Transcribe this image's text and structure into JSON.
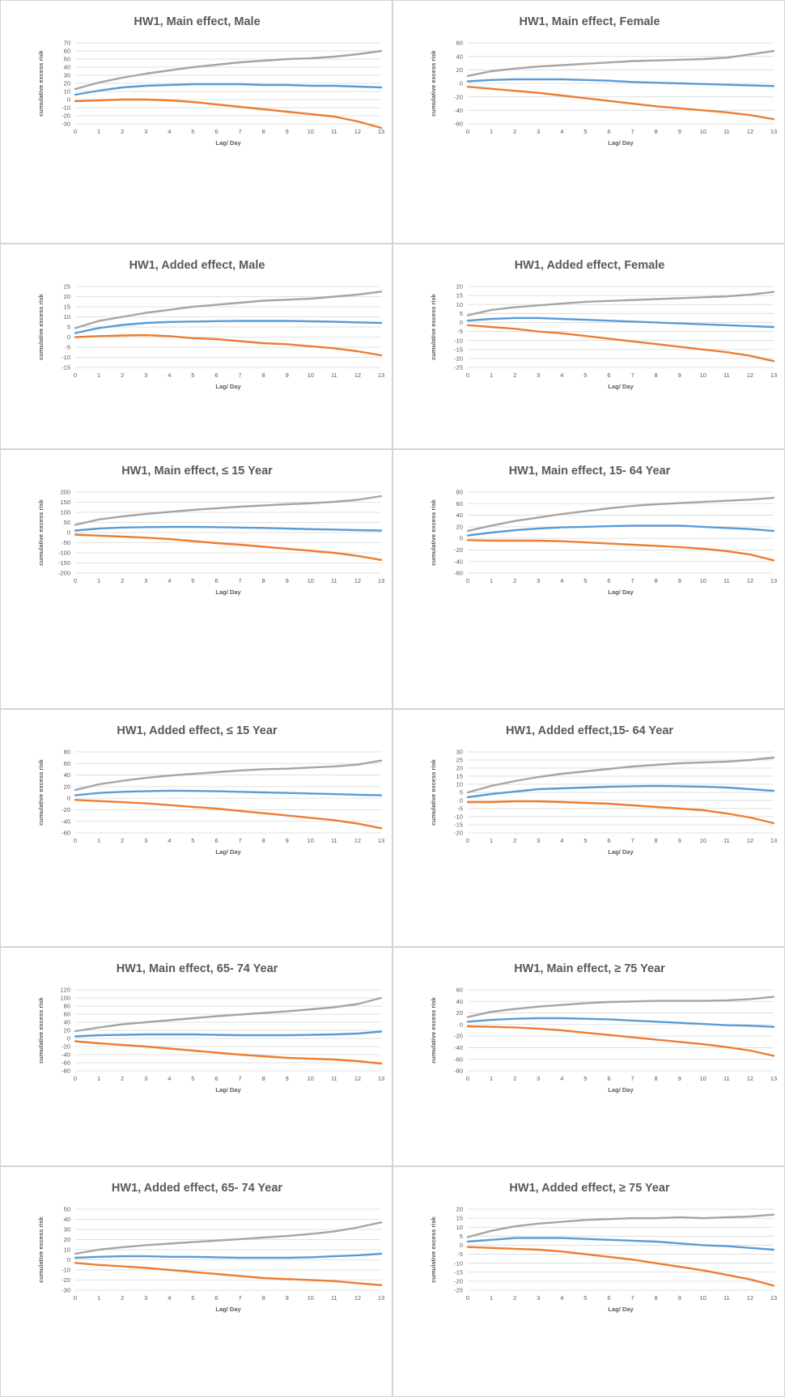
{
  "colors": {
    "upper": "#a5a5a5",
    "estimate": "#5b9bd5",
    "lower": "#ed7d31"
  },
  "chart_data": [
    {
      "type": "line",
      "title": "HW1, Main effect, Male",
      "xlabel": "Lag/ Day",
      "ylabel": "cumulative excess risk",
      "x": [
        0,
        1,
        2,
        3,
        4,
        5,
        6,
        7,
        8,
        9,
        10,
        11,
        12,
        13
      ],
      "ylim": [
        -30,
        70
      ],
      "yticks": [
        70,
        60,
        50,
        40,
        30,
        20,
        10,
        0,
        -10,
        -20,
        -30
      ],
      "grid": true,
      "series": [
        {
          "key": "upper",
          "values": [
            13,
            21,
            27,
            32,
            36,
            40,
            43,
            46,
            48,
            50,
            51,
            53,
            56,
            60
          ]
        },
        {
          "key": "estimate",
          "values": [
            6,
            11,
            15,
            17,
            18,
            19,
            19,
            19,
            18,
            18,
            17,
            17,
            16,
            15
          ]
        },
        {
          "key": "lower",
          "values": [
            -2,
            -1,
            0,
            0,
            -1,
            -3,
            -6,
            -9,
            -12,
            -15,
            -18,
            -21,
            -27,
            -35
          ]
        }
      ]
    },
    {
      "type": "line",
      "title": "HW1, Main effect, Female",
      "xlabel": "Lag/ Day",
      "ylabel": "cumulative excess risk",
      "x": [
        0,
        1,
        2,
        3,
        4,
        5,
        6,
        7,
        8,
        9,
        10,
        11,
        12,
        13
      ],
      "ylim": [
        -60,
        60
      ],
      "yticks": [
        60,
        40,
        20,
        0,
        -20,
        -40,
        -60
      ],
      "grid": true,
      "series": [
        {
          "key": "upper",
          "values": [
            11,
            18,
            22,
            25,
            27,
            29,
            31,
            33,
            34,
            35,
            36,
            38,
            43,
            48
          ]
        },
        {
          "key": "estimate",
          "values": [
            3,
            5,
            6,
            6,
            6,
            5,
            4,
            2,
            1,
            0,
            -1,
            -2,
            -3,
            -4
          ]
        },
        {
          "key": "lower",
          "values": [
            -5,
            -8,
            -11,
            -14,
            -18,
            -22,
            -26,
            -30,
            -34,
            -37,
            -40,
            -43,
            -47,
            -53
          ]
        }
      ]
    },
    {
      "type": "line",
      "title": "HW1, Added effect, Male",
      "xlabel": "Lag/ Day",
      "ylabel": "cumulative excess risk",
      "x": [
        0,
        1,
        2,
        3,
        4,
        5,
        6,
        7,
        8,
        9,
        10,
        11,
        12,
        13
      ],
      "ylim": [
        -15,
        25
      ],
      "yticks": [
        25,
        20,
        15,
        10,
        5,
        0,
        -5,
        -10,
        -15
      ],
      "grid": true,
      "series": [
        {
          "key": "upper",
          "values": [
            4.5,
            8,
            10,
            12,
            13.5,
            15,
            16,
            17,
            18,
            18.5,
            19,
            20,
            21,
            22.5
          ]
        },
        {
          "key": "estimate",
          "values": [
            2,
            4.5,
            6,
            7,
            7.5,
            7.7,
            7.9,
            8,
            8,
            8,
            7.8,
            7.6,
            7.3,
            7
          ]
        },
        {
          "key": "lower",
          "values": [
            0,
            0.5,
            0.8,
            1,
            0.5,
            -0.5,
            -1,
            -2,
            -3,
            -3.5,
            -4.5,
            -5.5,
            -7,
            -9
          ]
        }
      ]
    },
    {
      "type": "line",
      "title": "HW1, Added effect, Female",
      "xlabel": "Lag/ Day",
      "ylabel": "cumulative excess risk",
      "x": [
        0,
        1,
        2,
        3,
        4,
        5,
        6,
        7,
        8,
        9,
        10,
        11,
        12,
        13
      ],
      "ylim": [
        -25,
        20
      ],
      "yticks": [
        20,
        15,
        10,
        5,
        0,
        -5,
        -10,
        -15,
        -20,
        -25
      ],
      "grid": true,
      "series": [
        {
          "key": "upper",
          "values": [
            4,
            7,
            8.5,
            9.5,
            10.5,
            11.5,
            12,
            12.5,
            13,
            13.5,
            14,
            14.5,
            15.5,
            17
          ]
        },
        {
          "key": "estimate",
          "values": [
            1,
            2,
            2.5,
            2.5,
            2,
            1.5,
            1,
            0.5,
            0,
            -0.5,
            -1,
            -1.5,
            -2,
            -2.5
          ]
        },
        {
          "key": "lower",
          "values": [
            -1.5,
            -2.5,
            -3.5,
            -5,
            -6,
            -7.5,
            -9,
            -10.5,
            -12,
            -13.5,
            -15,
            -16.5,
            -18.5,
            -21.5
          ]
        }
      ]
    },
    {
      "type": "line",
      "title": "HW1, Main effect, ≤ 15 Year",
      "xlabel": "Lag/ Day",
      "ylabel": "cumulative excess risk",
      "x": [
        0,
        1,
        2,
        3,
        4,
        5,
        6,
        7,
        8,
        9,
        10,
        11,
        12,
        13
      ],
      "ylim": [
        -200,
        200
      ],
      "yticks": [
        200,
        150,
        100,
        50,
        0,
        -50,
        -100,
        -150,
        -200
      ],
      "grid": true,
      "series": [
        {
          "key": "upper",
          "values": [
            38,
            65,
            80,
            92,
            102,
            112,
            120,
            128,
            134,
            140,
            145,
            152,
            162,
            180
          ]
        },
        {
          "key": "estimate",
          "values": [
            10,
            20,
            25,
            27,
            28,
            28,
            27,
            25,
            23,
            20,
            17,
            15,
            12,
            10
          ]
        },
        {
          "key": "lower",
          "values": [
            -10,
            -15,
            -20,
            -25,
            -32,
            -42,
            -52,
            -60,
            -70,
            -80,
            -90,
            -100,
            -115,
            -135
          ]
        }
      ]
    },
    {
      "type": "line",
      "title": "HW1, Main effect, 15- 64 Year",
      "xlabel": "Lag/ Day",
      "ylabel": "cumulative excess risk",
      "x": [
        0,
        1,
        2,
        3,
        4,
        5,
        6,
        7,
        8,
        9,
        10,
        11,
        12,
        13
      ],
      "ylim": [
        -60,
        80
      ],
      "yticks": [
        80,
        60,
        40,
        20,
        0,
        -20,
        -40,
        -60
      ],
      "grid": true,
      "series": [
        {
          "key": "upper",
          "values": [
            13,
            22,
            30,
            36,
            42,
            47,
            52,
            56,
            59,
            61,
            63,
            65,
            67,
            70
          ]
        },
        {
          "key": "estimate",
          "values": [
            5,
            10,
            14,
            17,
            19,
            20,
            21,
            22,
            22,
            22,
            20,
            18,
            16,
            13
          ]
        },
        {
          "key": "lower",
          "values": [
            -3,
            -4,
            -4,
            -4,
            -5,
            -7,
            -9,
            -11,
            -13,
            -15,
            -18,
            -22,
            -28,
            -38
          ]
        }
      ]
    },
    {
      "type": "line",
      "title": "HW1, Added effect, ≤ 15 Year",
      "xlabel": "Lag/ Day",
      "ylabel": "cumulative excess risk",
      "x": [
        0,
        1,
        2,
        3,
        4,
        5,
        6,
        7,
        8,
        9,
        10,
        11,
        12,
        13
      ],
      "ylim": [
        -60,
        80
      ],
      "yticks": [
        80,
        60,
        40,
        20,
        0,
        -20,
        -40,
        -60
      ],
      "grid": true,
      "series": [
        {
          "key": "upper",
          "values": [
            14,
            24,
            30,
            35,
            39,
            42,
            45,
            48,
            50,
            51,
            53,
            55,
            58,
            65
          ]
        },
        {
          "key": "estimate",
          "values": [
            5,
            9,
            11,
            12,
            13,
            12.5,
            12,
            11,
            10,
            9,
            8,
            7,
            6,
            5
          ]
        },
        {
          "key": "lower",
          "values": [
            -3,
            -5,
            -7,
            -9,
            -12,
            -15,
            -18,
            -22,
            -26,
            -30,
            -34,
            -38,
            -44,
            -52
          ]
        }
      ]
    },
    {
      "type": "line",
      "title": "HW1, Added effect,15- 64 Year",
      "xlabel": "Lag/ Day",
      "ylabel": "cumulative excess risk",
      "x": [
        0,
        1,
        2,
        3,
        4,
        5,
        6,
        7,
        8,
        9,
        10,
        11,
        12,
        13
      ],
      "ylim": [
        -20,
        30
      ],
      "yticks": [
        30,
        25,
        20,
        15,
        10,
        5,
        0,
        -5,
        -10,
        -15,
        -20
      ],
      "grid": true,
      "series": [
        {
          "key": "upper",
          "values": [
            5,
            9,
            12,
            14.5,
            16.5,
            18,
            19.5,
            21,
            22,
            23,
            23.5,
            24,
            25,
            26.5
          ]
        },
        {
          "key": "estimate",
          "values": [
            2,
            4,
            5.5,
            7,
            7.5,
            8,
            8.5,
            8.8,
            9,
            8.8,
            8.5,
            8,
            7,
            6
          ]
        },
        {
          "key": "lower",
          "values": [
            -1,
            -1,
            -0.5,
            -0.5,
            -1,
            -1.5,
            -2,
            -3,
            -4,
            -5,
            -6,
            -8,
            -10.5,
            -14
          ]
        }
      ]
    },
    {
      "type": "line",
      "title": "HW1, Main effect, 65- 74 Year",
      "xlabel": "Lag/ Day",
      "ylabel": "cumulative excess risk",
      "x": [
        0,
        1,
        2,
        3,
        4,
        5,
        6,
        7,
        8,
        9,
        10,
        11,
        12,
        13
      ],
      "ylim": [
        -80,
        120
      ],
      "yticks": [
        120,
        100,
        80,
        60,
        40,
        20,
        0,
        -20,
        -40,
        -60,
        -80
      ],
      "grid": true,
      "series": [
        {
          "key": "upper",
          "values": [
            18,
            27,
            35,
            40,
            45,
            50,
            55,
            59,
            63,
            67,
            72,
            77,
            85,
            100
          ]
        },
        {
          "key": "estimate",
          "values": [
            5,
            8,
            9,
            10,
            10,
            10,
            9,
            8,
            8,
            8,
            9,
            10,
            12,
            17
          ]
        },
        {
          "key": "lower",
          "values": [
            -7,
            -12,
            -16,
            -20,
            -25,
            -30,
            -35,
            -40,
            -44,
            -48,
            -50,
            -52,
            -56,
            -62
          ]
        }
      ]
    },
    {
      "type": "line",
      "title": "HW1, Main effect, ≥ 75 Year",
      "xlabel": "Lag/ Day",
      "ylabel": "cumulative excess risk",
      "x": [
        0,
        1,
        2,
        3,
        4,
        5,
        6,
        7,
        8,
        9,
        10,
        11,
        12,
        13
      ],
      "ylim": [
        -80,
        60
      ],
      "yticks": [
        60,
        40,
        20,
        0,
        -20,
        -40,
        -60,
        -80
      ],
      "grid": true,
      "series": [
        {
          "key": "upper",
          "values": [
            13,
            22,
            27,
            31,
            34,
            37,
            39,
            40,
            41,
            41,
            41,
            42,
            44,
            48
          ]
        },
        {
          "key": "estimate",
          "values": [
            5,
            8,
            10,
            11,
            11,
            10,
            9,
            7,
            5,
            3,
            1,
            -1,
            -2,
            -4
          ]
        },
        {
          "key": "lower",
          "values": [
            -3,
            -4,
            -5,
            -7,
            -10,
            -14,
            -18,
            -22,
            -26,
            -30,
            -34,
            -39,
            -45,
            -54
          ]
        }
      ]
    },
    {
      "type": "line",
      "title": "HW1, Added effect, 65- 74 Year",
      "xlabel": "Lag/ Day",
      "ylabel": "cumulative excess risk",
      "x": [
        0,
        1,
        2,
        3,
        4,
        5,
        6,
        7,
        8,
        9,
        10,
        11,
        12,
        13
      ],
      "ylim": [
        -30,
        50
      ],
      "yticks": [
        50,
        40,
        30,
        20,
        10,
        0,
        -10,
        -20,
        -30
      ],
      "grid": true,
      "series": [
        {
          "key": "upper",
          "values": [
            6,
            10,
            12.5,
            14.5,
            16,
            17.5,
            19,
            20.5,
            22,
            23.5,
            25.5,
            28,
            32,
            37
          ]
        },
        {
          "key": "estimate",
          "values": [
            2,
            3,
            3.5,
            3.5,
            3,
            3,
            2.5,
            2,
            2,
            2,
            2.5,
            3.5,
            4.5,
            6
          ]
        },
        {
          "key": "lower",
          "values": [
            -3,
            -5,
            -6.5,
            -8,
            -10,
            -12,
            -14,
            -16,
            -18,
            -19,
            -20,
            -21,
            -23,
            -25
          ]
        }
      ]
    },
    {
      "type": "line",
      "title": "HW1, Added effect, ≥ 75 Year",
      "xlabel": "Lag/ Day",
      "ylabel": "cumulative excess risk",
      "x": [
        0,
        1,
        2,
        3,
        4,
        5,
        6,
        7,
        8,
        9,
        10,
        11,
        12,
        13
      ],
      "ylim": [
        -25,
        20
      ],
      "yticks": [
        20,
        15,
        10,
        5,
        0,
        -5,
        -10,
        -15,
        -20,
        -25
      ],
      "grid": true,
      "series": [
        {
          "key": "upper",
          "values": [
            4.5,
            8,
            10.5,
            12,
            13,
            14,
            14.5,
            15,
            15,
            15.5,
            15,
            15.5,
            16,
            17
          ]
        },
        {
          "key": "estimate",
          "values": [
            2,
            3,
            4,
            4,
            4,
            3.5,
            3,
            2.5,
            2,
            1,
            0,
            -0.5,
            -1.5,
            -2.5
          ]
        },
        {
          "key": "lower",
          "values": [
            -1,
            -1.5,
            -2,
            -2.5,
            -3.5,
            -5,
            -6.5,
            -8,
            -10,
            -12,
            -14,
            -16.5,
            -19,
            -22.5
          ]
        }
      ]
    }
  ]
}
